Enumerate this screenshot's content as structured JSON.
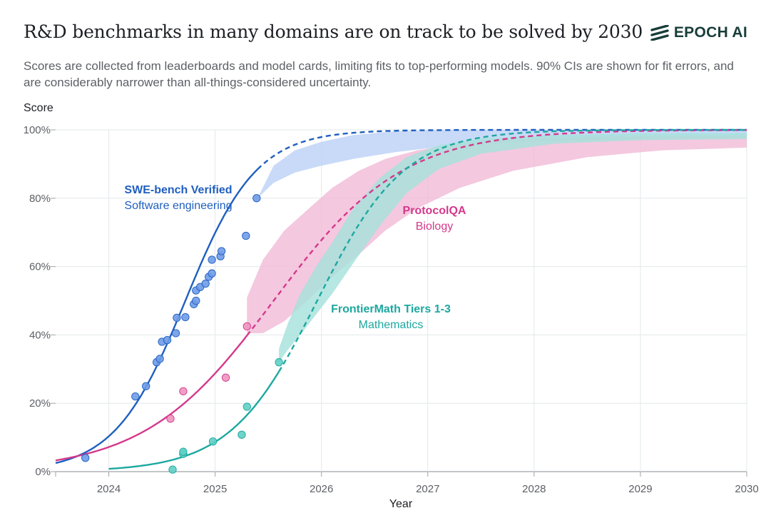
{
  "header": {
    "title": "R&D benchmarks in many domains are on track to be solved by 2030",
    "subtitle": "Scores are collected from leaderboards and model cards, limiting fits to top-performing models. 90% CIs are shown for fit errors, and are considerably narrower than all-things-considered uncertainty.",
    "logo_text": "EPOCH AI"
  },
  "chart_data": {
    "type": "line",
    "ylabel": "Score",
    "xlabel": "Year",
    "xlim": [
      2023.5,
      2030
    ],
    "ylim": [
      0,
      100
    ],
    "x_ticks": [
      "2024",
      "2025",
      "2026",
      "2027",
      "2028",
      "2029",
      "2030"
    ],
    "y_ticks": [
      "0%",
      "20%",
      "40%",
      "60%",
      "80%",
      "100%"
    ],
    "grid": true,
    "series": [
      {
        "key": "swe",
        "name": "SWE-bench Verified",
        "subname": "Software engineering",
        "color": "#1f5fbf",
        "fill": "#6f9be8",
        "band_color": "#bcd2f7",
        "midpoint": 2024.72,
        "rate": 3.0,
        "fit_start": 2023.5,
        "last_data_x": 2025.4,
        "band": [
          [
            2025.4,
            80,
            80
          ],
          [
            2025.55,
            84.5,
            89.5
          ],
          [
            2025.75,
            87.5,
            94
          ],
          [
            2026.0,
            89.5,
            96.5
          ],
          [
            2026.3,
            91.5,
            98.5
          ],
          [
            2026.7,
            93.5,
            99.6
          ],
          [
            2027.2,
            95.3,
            100
          ],
          [
            2028.0,
            96.6,
            100
          ],
          [
            2029.0,
            97.3,
            100
          ],
          [
            2030.0,
            97.6,
            100
          ]
        ],
        "points": [
          [
            2023.78,
            4
          ],
          [
            2024.25,
            22
          ],
          [
            2024.35,
            25
          ],
          [
            2024.45,
            32
          ],
          [
            2024.48,
            33
          ],
          [
            2024.5,
            38
          ],
          [
            2024.55,
            38.5
          ],
          [
            2024.63,
            40.5
          ],
          [
            2024.64,
            45
          ],
          [
            2024.72,
            45.2
          ],
          [
            2024.8,
            49
          ],
          [
            2024.82,
            50
          ],
          [
            2024.82,
            53
          ],
          [
            2024.86,
            54
          ],
          [
            2024.91,
            55
          ],
          [
            2024.94,
            57
          ],
          [
            2024.97,
            58
          ],
          [
            2024.97,
            62
          ],
          [
            2025.05,
            63
          ],
          [
            2025.06,
            64.5
          ],
          [
            2025.29,
            69
          ],
          [
            2025.39,
            80
          ]
        ]
      },
      {
        "key": "pqa",
        "name": "ProtocolQA",
        "subname": "Biology",
        "color": "#d4398a",
        "fill": "#ee93c0",
        "band_color": "#f2bcd8",
        "midpoint": 2025.55,
        "rate": 1.65,
        "fit_start": 2023.5,
        "last_data_x": 2025.3,
        "band": [
          [
            2025.3,
            40.5,
            51
          ],
          [
            2025.45,
            40.5,
            62
          ],
          [
            2025.65,
            44,
            70.5
          ],
          [
            2025.9,
            51,
            77.5
          ],
          [
            2026.1,
            57,
            83
          ],
          [
            2026.35,
            63.5,
            88
          ],
          [
            2026.6,
            70.5,
            91.5
          ],
          [
            2026.9,
            77,
            94
          ],
          [
            2027.3,
            83,
            96
          ],
          [
            2027.8,
            88,
            97.3
          ],
          [
            2028.5,
            92,
            98
          ],
          [
            2029.2,
            94,
            98.3
          ],
          [
            2030.0,
            94.8,
            98.4
          ]
        ],
        "points": [
          [
            2024.58,
            15.5
          ],
          [
            2024.7,
            23.5
          ],
          [
            2025.1,
            27.5
          ],
          [
            2025.3,
            42.5
          ]
        ]
      },
      {
        "key": "fm",
        "name": "FrontierMath Tiers 1-3",
        "subname": "Mathematics",
        "color": "#1da8a0",
        "fill": "#5fcfc4",
        "band_color": "#a6e2dc",
        "midpoint": 2025.96,
        "rate": 2.45,
        "fit_start": 2024.0,
        "last_data_x": 2025.6,
        "band": [
          [
            2025.6,
            32,
            36
          ],
          [
            2025.68,
            35.5,
            43
          ],
          [
            2025.8,
            40,
            52
          ],
          [
            2025.95,
            46,
            60
          ],
          [
            2026.1,
            52,
            67
          ],
          [
            2026.3,
            61,
            77
          ],
          [
            2026.55,
            72,
            86
          ],
          [
            2026.8,
            81.5,
            92
          ],
          [
            2027.1,
            88.5,
            95.5
          ],
          [
            2027.5,
            93,
            97.5
          ],
          [
            2028.2,
            96,
            98.5
          ],
          [
            2029.0,
            97,
            99
          ],
          [
            2030.0,
            97.3,
            99.1
          ]
        ],
        "points": [
          [
            2024.6,
            0.6
          ],
          [
            2024.7,
            5.2
          ],
          [
            2024.7,
            5.8
          ],
          [
            2024.98,
            8.8
          ],
          [
            2025.25,
            10.8
          ],
          [
            2025.3,
            19
          ],
          [
            2025.6,
            32
          ]
        ]
      }
    ]
  }
}
